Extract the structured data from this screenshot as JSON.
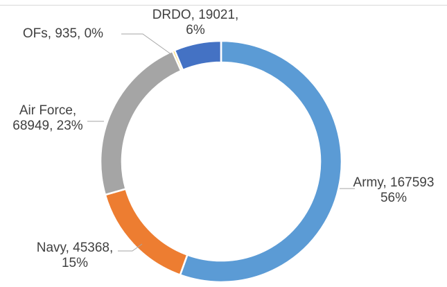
{
  "chart_data": {
    "type": "pie",
    "variant": "doughnut",
    "title": "",
    "slices": [
      {
        "name": "Army",
        "value": 167593,
        "percent": "56%",
        "color": "#5b9bd5",
        "label_lines": [
          "Army, 167593",
          "56%"
        ]
      },
      {
        "name": "Navy",
        "value": 45368,
        "percent": "15%",
        "color": "#ed7d31",
        "label_lines": [
          "Navy, 45368,",
          "15%"
        ]
      },
      {
        "name": "Air Force",
        "value": 68949,
        "percent": "23%",
        "color": "#a5a5a5",
        "label_lines": [
          "Air Force,",
          "68949, 23%"
        ]
      },
      {
        "name": "OFs",
        "value": 935,
        "percent": "0%",
        "color": "#ffc000",
        "label_lines": [
          "OFs, 935, 0%"
        ]
      },
      {
        "name": "DRDO",
        "value": 19021,
        "percent": "6%",
        "color": "#4472c4",
        "label_lines": [
          "DRDO, 19021,",
          "6%"
        ]
      }
    ],
    "legend": "none",
    "grid": false
  }
}
